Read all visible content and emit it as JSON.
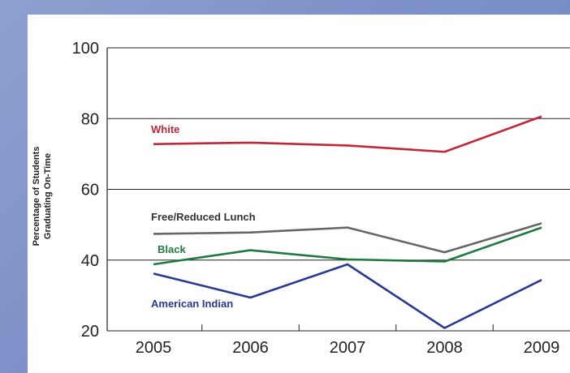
{
  "chart_data": {
    "type": "line",
    "x": [
      2005,
      2006,
      2007,
      2008,
      2009
    ],
    "xticks": [
      "2005",
      "2006",
      "2007",
      "2008",
      "2009"
    ],
    "ylim": [
      20,
      100
    ],
    "yticks": [
      "20",
      "40",
      "60",
      "80",
      "100"
    ],
    "ylabel_line1": "Percentage of Students",
    "ylabel_line2": "Graduating On-Time",
    "grid": true,
    "series": [
      {
        "name": "White",
        "color": "#c0283a",
        "values": [
          72.8,
          73.2,
          72.4,
          70.6,
          80.6
        ]
      },
      {
        "name": "Free/Reduced Lunch",
        "color": "#666666",
        "values": [
          47.4,
          47.8,
          49.2,
          42.2,
          50.4
        ]
      },
      {
        "name": "Black",
        "color": "#1e7a3e",
        "values": [
          38.8,
          42.8,
          40.2,
          39.6,
          49.2
        ]
      },
      {
        "name": "American Indian",
        "color": "#2a3990",
        "values": [
          36.2,
          29.4,
          38.8,
          20.8,
          34.4
        ]
      }
    ]
  }
}
